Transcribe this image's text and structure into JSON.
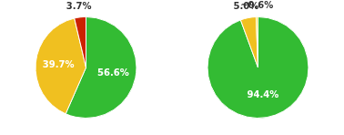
{
  "chart_data": [
    {
      "type": "pie",
      "values": [
        56.6,
        39.7,
        3.7
      ],
      "value_labels": [
        "56.6%",
        "39.7%",
        "3.7%"
      ],
      "colors": [
        "#33bb33",
        "#f0c020",
        "#cc2200"
      ],
      "data_labels": true
    },
    {
      "type": "pie",
      "values": [
        94.4,
        5.0,
        0.6
      ],
      "value_labels": [
        "94.4%",
        "5.0%",
        "~0.6%"
      ],
      "colors": [
        "#33bb33",
        "#f0c020",
        "#f0e040"
      ],
      "data_labels": true
    }
  ]
}
